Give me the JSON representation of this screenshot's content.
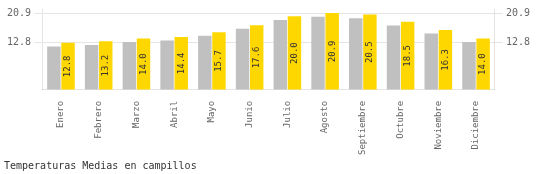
{
  "chart_data": {
    "type": "bar",
    "title": "Temperaturas Medias en campillos",
    "categories": [
      "Enero",
      "Febrero",
      "Marzo",
      "Abril",
      "Mayo",
      "Junio",
      "Julio",
      "Agosto",
      "Septiembre",
      "Octubre",
      "Noviembre",
      "Diciembre"
    ],
    "series": [
      {
        "color": "#C0C0C0",
        "values": [
          11.8,
          12.2,
          13.0,
          13.4,
          14.7,
          16.6,
          19.0,
          19.9,
          19.5,
          17.5,
          15.3,
          13.0
        ]
      },
      {
        "color": "#FFD700",
        "values": [
          12.8,
          13.2,
          14.0,
          14.4,
          15.7,
          17.6,
          20.0,
          20.9,
          20.5,
          18.5,
          16.3,
          14.0
        ],
        "data_labels": true,
        "value_labels": [
          "12.8",
          "13.2",
          "14.0",
          "14.4",
          "15.7",
          "17.6",
          "20.0",
          "20.9",
          "20.5",
          "18.5",
          "16.3",
          "14.0"
        ]
      }
    ],
    "ylim": [
      0.0,
      22.0
    ],
    "yticks": [
      12.8,
      20.9
    ],
    "y2lim": [
      0.0,
      22.0
    ],
    "y2ticks": [
      12.8,
      20.9
    ],
    "grid": true
  }
}
